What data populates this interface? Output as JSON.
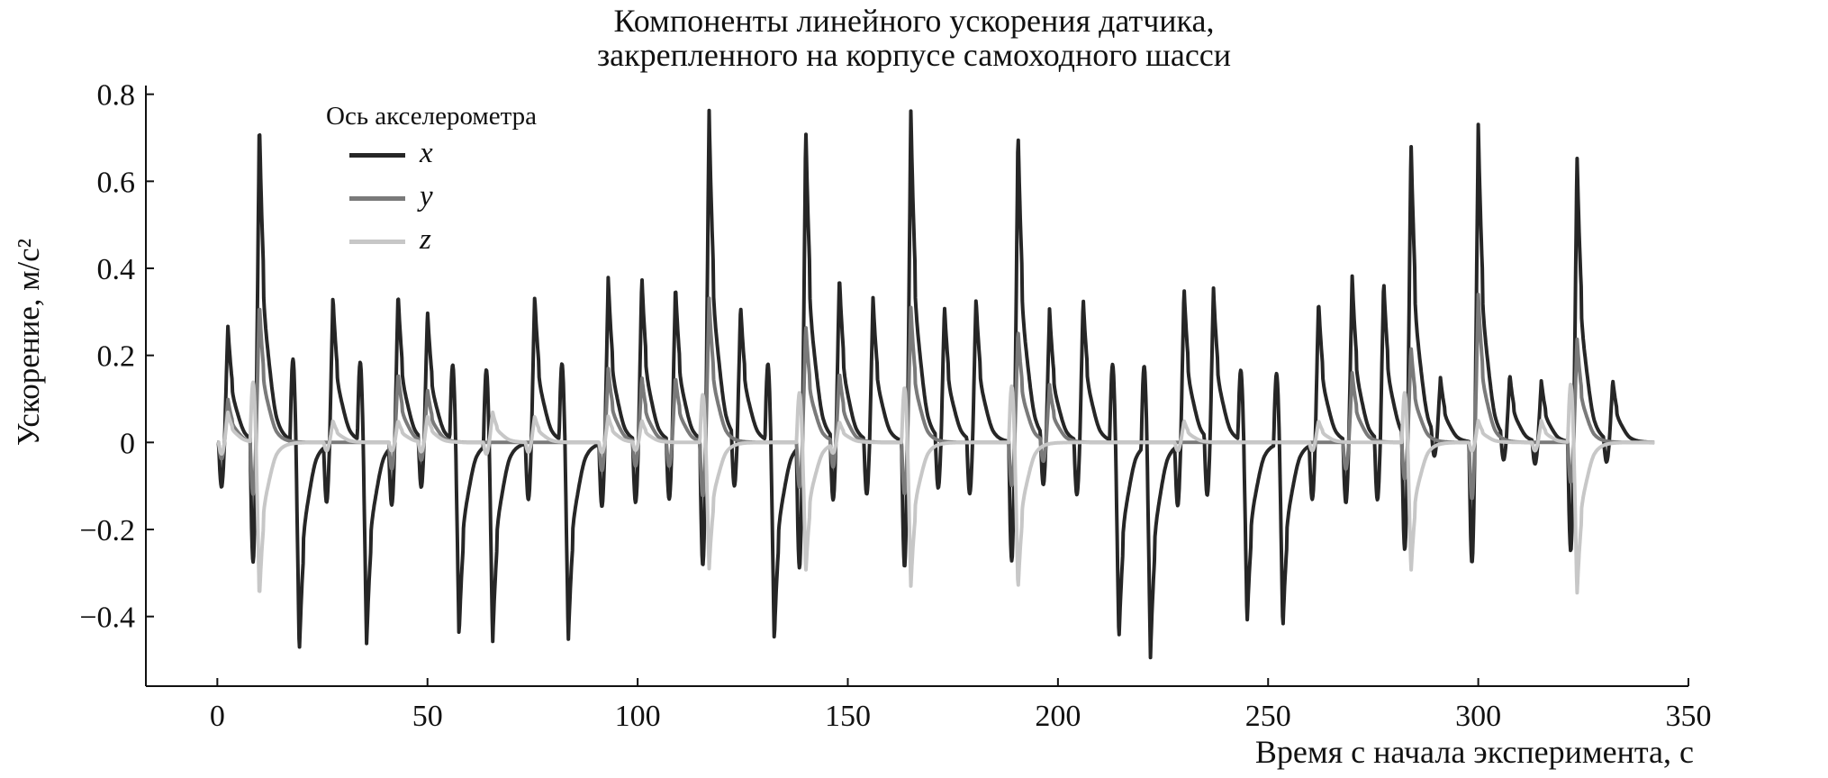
{
  "chart_data": {
    "type": "line",
    "title_lines": [
      "Компоненты линейного ускорения датчика,",
      "закрепленного на корпусе самоходного шасси"
    ],
    "xlabel": "Время с начала эксперимента, с",
    "ylabel": "Ускорение, м/с²",
    "xlim": [
      -17,
      350
    ],
    "ylim": [
      -0.56,
      0.82
    ],
    "xticks": [
      0,
      50,
      100,
      150,
      200,
      250,
      300,
      350
    ],
    "yticks": [
      -0.4,
      -0.2,
      0,
      0.2,
      0.4,
      0.6,
      0.8
    ],
    "ytick_labels": [
      "−0.4",
      "−0.2",
      "0",
      "0.2",
      "0.4",
      "0.6",
      "0.8"
    ],
    "x_range": [
      0,
      342
    ],
    "legend": {
      "title": "Ось акселерометра",
      "position": "top-left"
    },
    "series": [
      {
        "name": "x",
        "color": "#262626",
        "width": 4,
        "events": [
          [
            2.5,
            0.27
          ],
          [
            10,
            0.74
          ],
          [
            19.5,
            -0.49
          ],
          [
            27.5,
            0.34
          ],
          [
            35.5,
            -0.47
          ],
          [
            43,
            0.35
          ],
          [
            50,
            0.3
          ],
          [
            57.5,
            -0.45
          ],
          [
            65.5,
            -0.46
          ],
          [
            75.5,
            0.34
          ],
          [
            83.5,
            -0.46
          ],
          [
            93,
            0.38
          ],
          [
            101,
            0.38
          ],
          [
            109,
            0.36
          ],
          [
            117,
            0.76
          ],
          [
            124.5,
            0.31
          ],
          [
            132.5,
            -0.46
          ],
          [
            140,
            0.73
          ],
          [
            148,
            0.38
          ],
          [
            156,
            0.33
          ],
          [
            165,
            0.76
          ],
          [
            173,
            0.31
          ],
          [
            180.5,
            0.33
          ],
          [
            190.5,
            0.72
          ],
          [
            198,
            0.3
          ],
          [
            206,
            0.33
          ],
          [
            214.5,
            -0.46
          ],
          [
            222,
            -0.49
          ],
          [
            230,
            0.36
          ],
          [
            237,
            0.35
          ],
          [
            245,
            -0.42
          ],
          [
            253.5,
            -0.43
          ],
          [
            262,
            0.33
          ],
          [
            270,
            0.38
          ],
          [
            277.5,
            0.37
          ],
          [
            284,
            0.69
          ],
          [
            291,
            0.14
          ],
          [
            300,
            0.73
          ],
          [
            307.5,
            0.15
          ],
          [
            315,
            0.14
          ],
          [
            323.5,
            0.66
          ],
          [
            332,
            0.14
          ]
        ]
      },
      {
        "name": "y",
        "color": "#7a7a7a",
        "width": 4,
        "events": [
          [
            2.5,
            0.1
          ],
          [
            10,
            0.32
          ],
          [
            43,
            0.16
          ],
          [
            50,
            0.12
          ],
          [
            93,
            0.17
          ],
          [
            101,
            0.15
          ],
          [
            109,
            0.15
          ],
          [
            117,
            0.33
          ],
          [
            140,
            0.27
          ],
          [
            148,
            0.16
          ],
          [
            165,
            0.31
          ],
          [
            190.5,
            0.26
          ],
          [
            198,
            0.13
          ],
          [
            270,
            0.16
          ],
          [
            284,
            0.22
          ],
          [
            300,
            0.34
          ],
          [
            323.5,
            0.24
          ]
        ]
      },
      {
        "name": "z",
        "color": "#c7c7c7",
        "width": 4,
        "events": [
          [
            2.5,
            0.07
          ],
          [
            10,
            -0.36
          ],
          [
            27.5,
            0.05
          ],
          [
            43,
            0.05
          ],
          [
            50,
            0.06
          ],
          [
            65.5,
            0.07
          ],
          [
            75.5,
            0.06
          ],
          [
            93,
            0.06
          ],
          [
            101,
            0.05
          ],
          [
            117,
            -0.29
          ],
          [
            140,
            -0.3
          ],
          [
            148,
            0.05
          ],
          [
            165,
            -0.33
          ],
          [
            190.5,
            -0.34
          ],
          [
            230,
            0.05
          ],
          [
            262,
            0.05
          ],
          [
            284,
            -0.3
          ],
          [
            300,
            0.05
          ],
          [
            315,
            0.05
          ],
          [
            323.5,
            -0.35
          ]
        ]
      }
    ]
  }
}
